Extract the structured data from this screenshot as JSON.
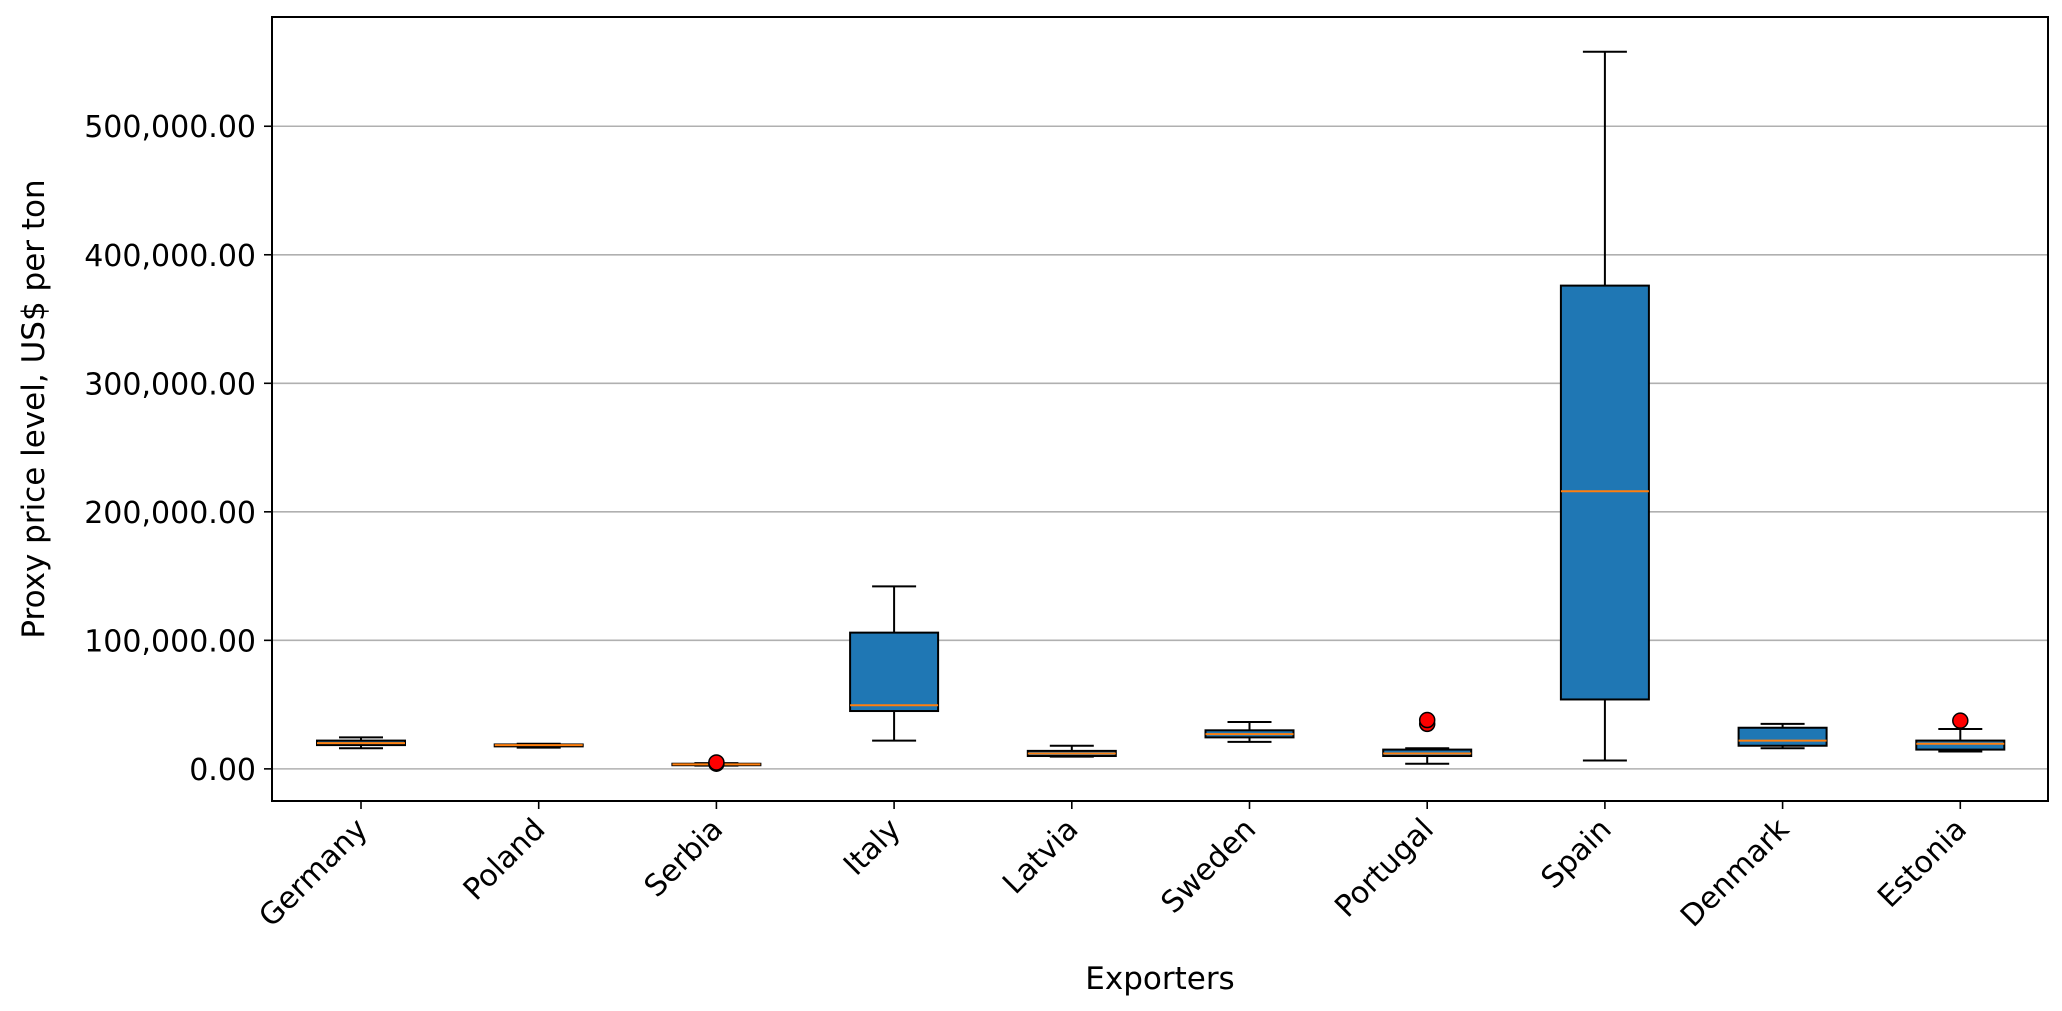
{
  "chart_data": {
    "type": "box",
    "xlabel": "Exporters",
    "ylabel": "Proxy price level, US$ per ton",
    "ylim": [
      -25000,
      585000
    ],
    "yticks": [
      0,
      100000,
      200000,
      300000,
      400000,
      500000
    ],
    "ytick_labels": [
      "0.00",
      "100,000.00",
      "200,000.00",
      "300,000.00",
      "400,000.00",
      "500,000.00"
    ],
    "grid": "horizontal",
    "box_color": "#1f77b4",
    "median_color": "#ff7f0e",
    "outlier_color": "#ff0000",
    "categories": [
      "Germany",
      "Poland",
      "Serbia",
      "Italy",
      "Latvia",
      "Sweden",
      "Portugal",
      "Spain",
      "Denmark",
      "Estonia"
    ],
    "boxes": [
      {
        "category": "Germany",
        "whisker_low": 16000,
        "q1": 18500,
        "median": 20000,
        "q3": 22000,
        "whisker_high": 24500,
        "outliers": []
      },
      {
        "category": "Poland",
        "whisker_low": 16500,
        "q1": 17500,
        "median": 18500,
        "q3": 19000,
        "whisker_high": 19500,
        "outliers": []
      },
      {
        "category": "Serbia",
        "whisker_low": 2500,
        "q1": 3000,
        "median": 3500,
        "q3": 4000,
        "whisker_high": 4500,
        "outliers": [
          4000,
          5000
        ]
      },
      {
        "category": "Italy",
        "whisker_low": 22000,
        "q1": 45000,
        "median": 49500,
        "q3": 106000,
        "whisker_high": 142000,
        "outliers": []
      },
      {
        "category": "Latvia",
        "whisker_low": 9500,
        "q1": 10000,
        "median": 12000,
        "q3": 14000,
        "whisker_high": 18000,
        "outliers": []
      },
      {
        "category": "Sweden",
        "whisker_low": 21000,
        "q1": 24500,
        "median": 27000,
        "q3": 30000,
        "whisker_high": 36500,
        "outliers": []
      },
      {
        "category": "Portugal",
        "whisker_low": 4000,
        "q1": 10000,
        "median": 12000,
        "q3": 15000,
        "whisker_high": 16000,
        "outliers": [
          35000,
          38000
        ]
      },
      {
        "category": "Spain",
        "whisker_low": 6500,
        "q1": 54000,
        "median": 216000,
        "q3": 376000,
        "whisker_high": 558000,
        "outliers": []
      },
      {
        "category": "Denmark",
        "whisker_low": 16000,
        "q1": 18000,
        "median": 22000,
        "q3": 32000,
        "whisker_high": 35000,
        "outliers": []
      },
      {
        "category": "Estonia",
        "whisker_low": 13500,
        "q1": 15000,
        "median": 19500,
        "q3": 22000,
        "whisker_high": 31000,
        "outliers": [
          37500
        ]
      }
    ]
  }
}
